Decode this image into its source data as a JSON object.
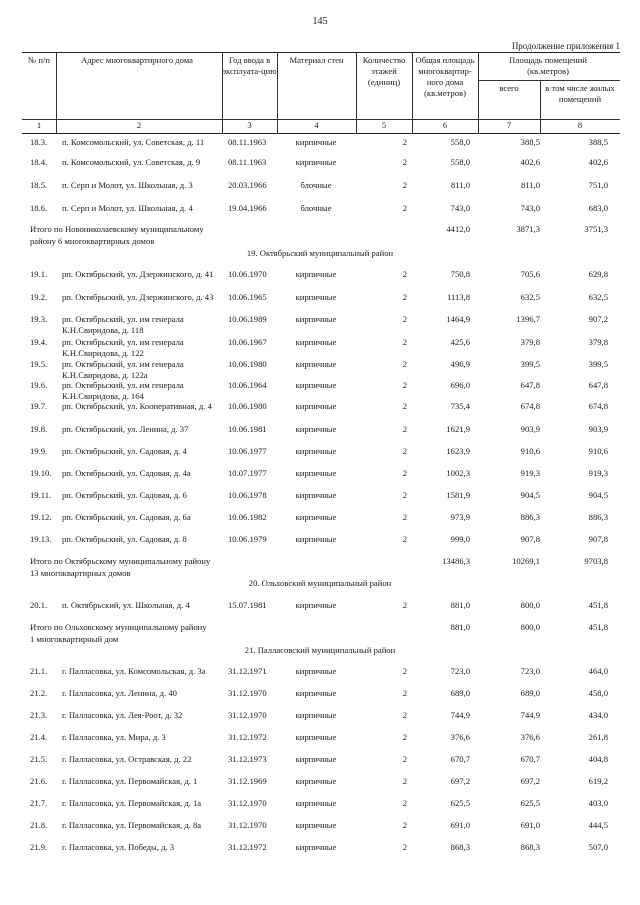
{
  "page_number": "145",
  "continuation": "Продолжение приложения 1",
  "header": {
    "col1": "№ п/п",
    "col2": "Адрес многоквартирного дома",
    "col3": "Год ввода в эксплуата-цию",
    "col4": "Материал стен",
    "col5": "Количество этажей (единиц)",
    "col6": "Общая площадь многоквартир-ного дома (кв.метров)",
    "col78": "Площадь помещений (кв.метров)",
    "col7": "всего",
    "col8": "в том числе жилых помещений",
    "numbers": [
      "1",
      "2",
      "3",
      "4",
      "5",
      "6",
      "7",
      "8"
    ]
  },
  "rows": [
    {
      "type": "item",
      "n": "18.3.",
      "addr": [
        "п. Комсомольский, ул. Советская, д. 11"
      ],
      "date": "08.11.1963",
      "mat": "кирпичные",
      "fl": "2",
      "total": "558,0",
      "all": "388,5",
      "living": "388,5"
    },
    {
      "type": "item",
      "n": "18.4.",
      "addr": [
        "п. Комсомольский, ул. Советская, д. 9"
      ],
      "date": "08.11.1963",
      "mat": "кирпичные",
      "fl": "2",
      "total": "558,0",
      "all": "402,6",
      "living": "402,6"
    },
    {
      "type": "item",
      "n": "18.5.",
      "addr": [
        "п. Серп и Молот, ул. Школьная, д. 3"
      ],
      "date": "20.03.1966",
      "mat": "блочные",
      "fl": "2",
      "total": "811,0",
      "all": "811,0",
      "living": "751,0"
    },
    {
      "type": "item",
      "n": "18.6.",
      "addr": [
        "п. Серп и Молот, ул. Школьная, д. 4"
      ],
      "date": "19.04.1966",
      "mat": "блочные",
      "fl": "2",
      "total": "743,0",
      "all": "743,0",
      "living": "683,0"
    },
    {
      "type": "total",
      "text": [
        "Итого по Новониколаевскому муниципальному",
        "району  6 многоквартирных домов"
      ],
      "total": "4412,0",
      "all": "3871,3",
      "living": "3751,3"
    },
    {
      "type": "section",
      "text": "19. Октябрьский муниципальный район"
    },
    {
      "type": "item",
      "n": "19.1.",
      "addr": [
        "рп. Октябрьский, ул. Дзержинского, д. 41"
      ],
      "date": "10.06.1970",
      "mat": "кирпичные",
      "fl": "2",
      "total": "750,8",
      "all": "705,6",
      "living": "629,8"
    },
    {
      "type": "item",
      "n": "19.2.",
      "addr": [
        "рп. Октябрьский, ул. Дзержинского, д. 43"
      ],
      "date": "10.06.1965",
      "mat": "кирпичные",
      "fl": "2",
      "total": "1113,8",
      "all": "632,5",
      "living": "632,5"
    },
    {
      "type": "item",
      "n": "19.3.",
      "addr": [
        "рп. Октябрьский, ул. им генерала",
        "К.Н.Свиридова, д. 118"
      ],
      "date": "10.06.1989",
      "mat": "кирпичные",
      "fl": "2",
      "total": "1464,9",
      "all": "1396,7",
      "living": "907,2"
    },
    {
      "type": "item",
      "n": "19.4.",
      "addr": [
        "рп. Октябрьский, ул. им генерала",
        "К.Н.Свиридова, д. 122"
      ],
      "date": "10.06.1967",
      "mat": "кирпичные",
      "fl": "2",
      "total": "425,6",
      "all": "379,8",
      "living": "379,8"
    },
    {
      "type": "item",
      "n": "19.5.",
      "addr": [
        "рп. Октябрьский, ул. им генерала",
        "К.Н.Свиридова, д. 122а"
      ],
      "date": "10.06.1980",
      "mat": "кирпичные",
      "fl": "2",
      "total": "496,9",
      "all": "399,5",
      "living": "399,5"
    },
    {
      "type": "item",
      "n": "19.6.",
      "addr": [
        "рп. Октябрьский, ул. им генерала",
        "К.Н.Свиридова, д. 164"
      ],
      "date": "10.06.1964",
      "mat": "кирпичные",
      "fl": "2",
      "total": "696,0",
      "all": "647,8",
      "living": "647,8"
    },
    {
      "type": "item",
      "n": "19.7.",
      "addr": [
        "рп. Октябрьский, ул. Кооперативная, д. 4"
      ],
      "date": "10.06.1980",
      "mat": "кирпичные",
      "fl": "2",
      "total": "735,4",
      "all": "674,8",
      "living": "674,8"
    },
    {
      "type": "item",
      "n": "19.8.",
      "addr": [
        "рп. Октябрьский, ул. Ленина, д. 37"
      ],
      "date": "10.06.1981",
      "mat": "кирпичные",
      "fl": "2",
      "total": "1621,9",
      "all": "903,9",
      "living": "903,9"
    },
    {
      "type": "item",
      "n": "19.9.",
      "addr": [
        "рп. Октябрьский, ул. Садовая, д. 4"
      ],
      "date": "10.06.1977",
      "mat": "кирпичные",
      "fl": "2",
      "total": "1623,9",
      "all": "910,6",
      "living": "910,6"
    },
    {
      "type": "item",
      "n": "19.10.",
      "addr": [
        "рп. Октябрьский, ул. Садовая, д. 4а"
      ],
      "date": "10.07.1977",
      "mat": "кирпичные",
      "fl": "2",
      "total": "1002,3",
      "all": "919,3",
      "living": "919,3"
    },
    {
      "type": "item",
      "n": "19.11.",
      "addr": [
        "рп. Октябрьский, ул. Садовая, д. 6"
      ],
      "date": "10.06.1978",
      "mat": "кирпичные",
      "fl": "2",
      "total": "1581,9",
      "all": "904,5",
      "living": "904,5"
    },
    {
      "type": "item",
      "n": "19.12.",
      "addr": [
        "рп. Октябрьский, ул. Садовая, д. 6а"
      ],
      "date": "10.06.1982",
      "mat": "кирпичные",
      "fl": "2",
      "total": "973,9",
      "all": "886,3",
      "living": "886,3"
    },
    {
      "type": "item",
      "n": "19.13.",
      "addr": [
        "рп. Октябрьский, ул. Садовая, д. 8"
      ],
      "date": "10.06.1979",
      "mat": "кирпичные",
      "fl": "2",
      "total": "999,0",
      "all": "907,8",
      "living": "907,8"
    },
    {
      "type": "total",
      "text": [
        "Итого по Октябрьскому муниципальному району",
        "13 многоквартирных домов"
      ],
      "total": "13486,3",
      "all": "10269,1",
      "living": "9703,8"
    },
    {
      "type": "section",
      "text": "20. Ольховский муниципальный район"
    },
    {
      "type": "item",
      "n": "20.1.",
      "addr": [
        "п. Октябрьский, ул. Школьная, д. 4"
      ],
      "date": "15.07.1981",
      "mat": "кирпичные",
      "fl": "2",
      "total": "881,0",
      "all": "800,0",
      "living": "451,8"
    },
    {
      "type": "total",
      "text": [
        "Итого по Ольховскому муниципальному району",
        "1 многоквартирный дом"
      ],
      "total": "881,0",
      "all": "800,0",
      "living": "451,8"
    },
    {
      "type": "section",
      "text": "21. Палласовский муниципальный район"
    },
    {
      "type": "item",
      "n": "21.1.",
      "addr": [
        "г. Палласовка, ул. Комсомольская, д. 3а"
      ],
      "date": "31.12.1971",
      "mat": "кирпичные",
      "fl": "2",
      "total": "723,0",
      "all": "723,0",
      "living": "464,0"
    },
    {
      "type": "item",
      "n": "21.2.",
      "addr": [
        "г. Палласовка, ул. Ленина, д. 40"
      ],
      "date": "31.12.1970",
      "mat": "кирпичные",
      "fl": "2",
      "total": "689,0",
      "all": "689,0",
      "living": "458,0"
    },
    {
      "type": "item",
      "n": "21.3.",
      "addr": [
        "г. Палласовка, ул. Лея-Роот, д. 32"
      ],
      "date": "31.12.1970",
      "mat": "кирпичные",
      "fl": "2",
      "total": "744,9",
      "all": "744,9",
      "living": "434,0"
    },
    {
      "type": "item",
      "n": "21.4.",
      "addr": [
        "г. Палласовка, ул. Мира, д. 3"
      ],
      "date": "31.12.1972",
      "mat": "кирпичные",
      "fl": "2",
      "total": "376,6",
      "all": "376,6",
      "living": "261,8"
    },
    {
      "type": "item",
      "n": "21.5.",
      "addr": [
        "г. Палласовка, ул. Остравская, д. 22"
      ],
      "date": "31.12.1973",
      "mat": "кирпичные",
      "fl": "2",
      "total": "670,7",
      "all": "670,7",
      "living": "404,8"
    },
    {
      "type": "item",
      "n": "21.6.",
      "addr": [
        "г. Палласовка, ул. Первомайская, д. 1"
      ],
      "date": "31.12.1969",
      "mat": "кирпичные",
      "fl": "2",
      "total": "697,2",
      "all": "697,2",
      "living": "619,2"
    },
    {
      "type": "item",
      "n": "21.7.",
      "addr": [
        "г. Палласовка, ул. Первомайская, д. 1а"
      ],
      "date": "31.12.1970",
      "mat": "кирпичные",
      "fl": "2",
      "total": "625,5",
      "all": "625,5",
      "living": "403,0"
    },
    {
      "type": "item",
      "n": "21.8.",
      "addr": [
        "г. Палласовка, ул. Первомайская, д. 8а"
      ],
      "date": "31.12.1970",
      "mat": "кирпичные",
      "fl": "2",
      "total": "691,0",
      "all": "691,0",
      "living": "444,5"
    },
    {
      "type": "item",
      "n": "21.9.",
      "addr": [
        "г. Палласовка, ул. Победы, д. 3"
      ],
      "date": "31.12.1972",
      "mat": "кирпичные",
      "fl": "2",
      "total": "868,3",
      "all": "868,3",
      "living": "507,0"
    }
  ]
}
